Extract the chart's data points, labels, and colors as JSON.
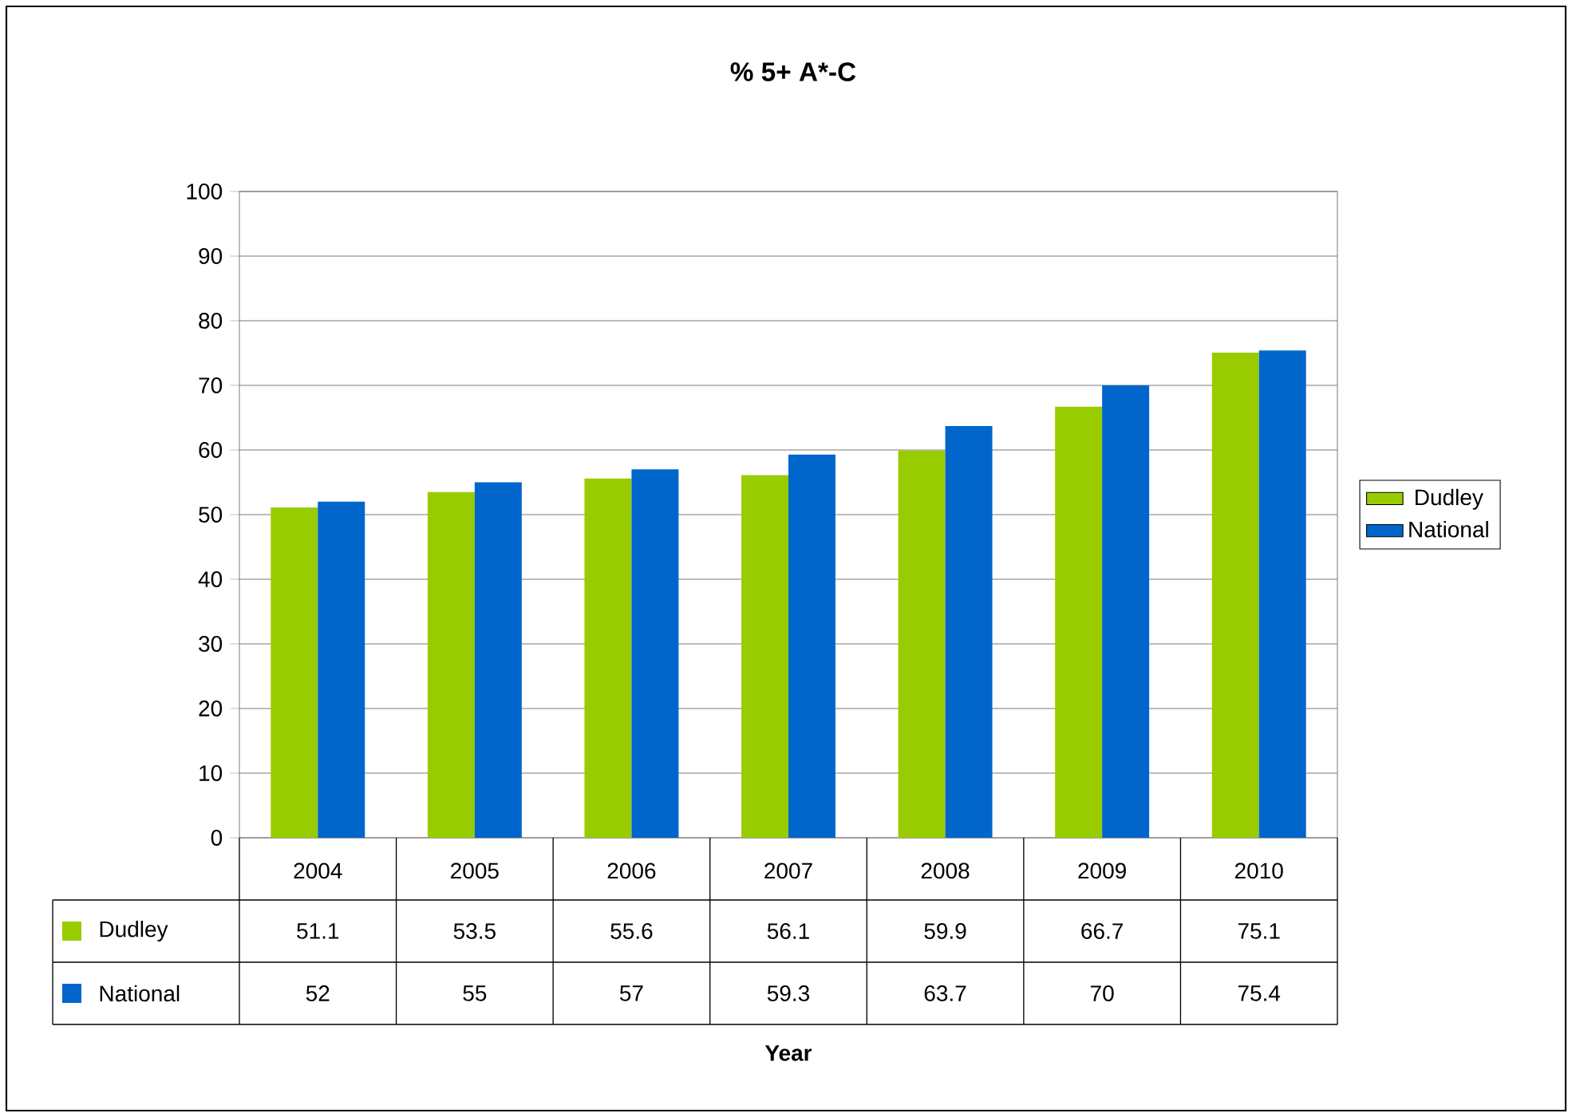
{
  "chart_data": {
    "type": "bar",
    "title": "% 5+ A*-C",
    "annotations": [
      "Year"
    ],
    "categories": [
      "2004",
      "2005",
      "2006",
      "2007",
      "2008",
      "2009",
      "2010"
    ],
    "series": [
      {
        "name": "Dudley",
        "color": "#99cc00",
        "values": [
          51.1,
          53.5,
          55.6,
          56.1,
          59.9,
          66.7,
          75.1
        ]
      },
      {
        "name": "National",
        "color": "#0066cc",
        "values": [
          52,
          55,
          57,
          59.3,
          63.7,
          70,
          75.4
        ]
      }
    ],
    "ylim": [
      0,
      100
    ],
    "yticks": [
      0,
      10,
      20,
      30,
      40,
      50,
      60,
      70,
      80,
      90,
      100
    ],
    "grid": "y",
    "legend": "right",
    "data_labels": true
  }
}
